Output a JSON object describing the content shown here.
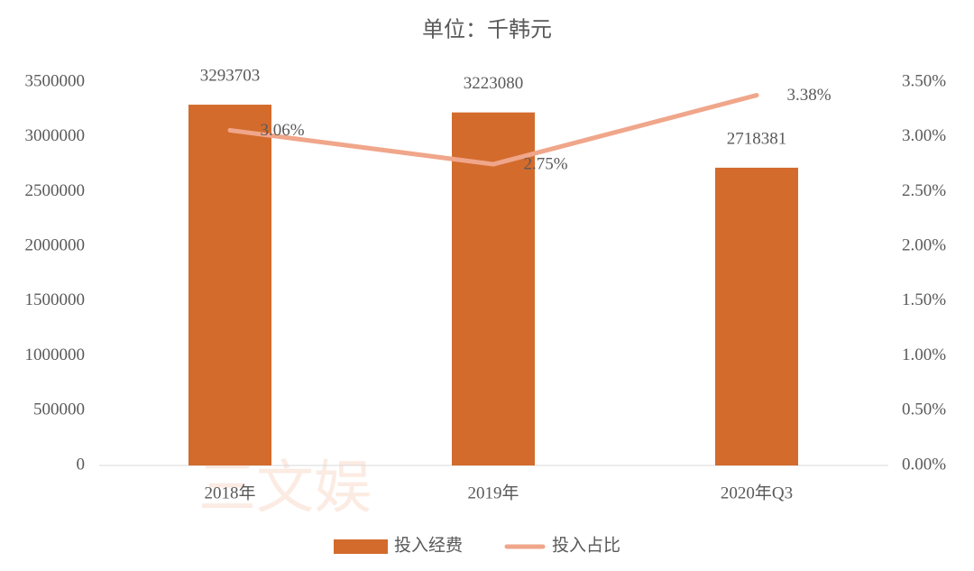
{
  "chart_data": {
    "type": "combo",
    "title": "单位：千韩元",
    "watermark": "三文娱",
    "categories": [
      "2018年",
      "2019年",
      "2020年Q3"
    ],
    "series": [
      {
        "name": "投入经费",
        "type": "bar",
        "color": "#d36b2d",
        "values": [
          3293703,
          3223080,
          2718381
        ]
      },
      {
        "name": "投入占比",
        "type": "line",
        "axis": "y2",
        "color": "#f0a68a",
        "values": [
          3.06,
          2.75,
          3.38
        ],
        "value_labels": [
          "3.06%",
          "2.75%",
          "3.38%"
        ]
      }
    ],
    "ylim": [
      0,
      3500000
    ],
    "yticks": [
      0,
      500000,
      1000000,
      1500000,
      2000000,
      2500000,
      3000000,
      3500000
    ],
    "y2lim": [
      0,
      3.5
    ],
    "y2ticks": [
      {
        "value": 0,
        "label": "0.00%"
      },
      {
        "value": 0.5,
        "label": "0.50%"
      },
      {
        "value": 1,
        "label": "1.00%"
      },
      {
        "value": 1.5,
        "label": "1.50%"
      },
      {
        "value": 2,
        "label": "2.00%"
      },
      {
        "value": 2.5,
        "label": "2.50%"
      },
      {
        "value": 3,
        "label": "3.00%"
      },
      {
        "value": 3.5,
        "label": "3.50%"
      }
    ],
    "legend": "bottom",
    "grid": false
  }
}
